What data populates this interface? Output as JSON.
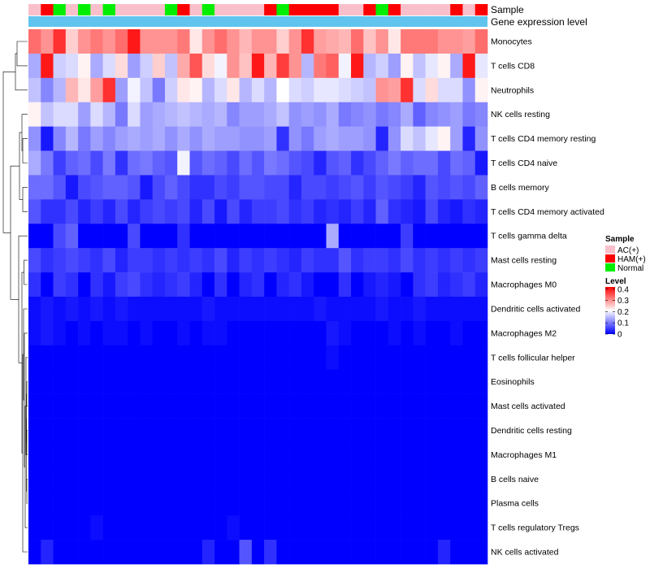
{
  "chart_data": {
    "type": "heatmap",
    "annotation_labels": {
      "sample": "Sample",
      "expression": "Gene expression level"
    },
    "sample_legend": {
      "title": "Sample",
      "entries": [
        {
          "label": "AC(+)",
          "color": "#F9C0CB"
        },
        {
          "label": "HAM(+)",
          "color": "#FF0000"
        },
        {
          "label": "Normal",
          "color": "#00EE00"
        }
      ]
    },
    "level_legend": {
      "title": "Level",
      "ticks": [
        "0.4",
        "0.3",
        "0.2",
        "0.1",
        "0"
      ],
      "tick_values": [
        0.4,
        0.3,
        0.2,
        0.1,
        0
      ],
      "range": [
        0,
        0.42
      ],
      "colors": [
        "#0000FF",
        "#FFFFFF",
        "#FF0000"
      ],
      "mid": 0.21
    },
    "samples": [
      "AC(+)",
      "HAM(+)",
      "Normal",
      "AC(+)",
      "Normal",
      "AC(+)",
      "Normal",
      "AC(+)",
      "AC(+)",
      "AC(+)",
      "AC(+)",
      "Normal",
      "HAM(+)",
      "AC(+)",
      "Normal",
      "AC(+)",
      "AC(+)",
      "AC(+)",
      "AC(+)",
      "HAM(+)",
      "Normal",
      "HAM(+)",
      "HAM(+)",
      "HAM(+)",
      "HAM(+)",
      "AC(+)",
      "AC(+)",
      "HAM(+)",
      "Normal",
      "HAM(+)",
      "AC(+)",
      "AC(+)",
      "AC(+)",
      "AC(+)",
      "HAM(+)",
      "AC(+)",
      "HAM(+)"
    ],
    "rows": [
      "Monocytes",
      "T cells CD8",
      "Neutrophils",
      "NK cells resting",
      "T cells CD4 memory resting",
      "T cells CD4 naive",
      "B cells memory",
      "T cells CD4 memory activated",
      "T cells gamma delta",
      "Mast cells resting",
      "Macrophages M0",
      "Dendritic cells activated",
      "Macrophages M2",
      "T cells follicular helper",
      "Eosinophils",
      "Mast cells activated",
      "Dendritic cells resting",
      "Macrophages M1",
      "B cells naive",
      "Plasma cells",
      "T cells regulatory  Tregs",
      "NK cells activated"
    ],
    "values": [
      [
        0.33,
        0.3,
        0.38,
        0.25,
        0.3,
        0.32,
        0.3,
        0.33,
        0.4,
        0.3,
        0.3,
        0.3,
        0.32,
        0.23,
        0.3,
        0.33,
        0.3,
        0.27,
        0.3,
        0.3,
        0.25,
        0.3,
        0.38,
        0.29,
        0.28,
        0.27,
        0.33,
        0.26,
        0.3,
        0.23,
        0.32,
        0.32,
        0.32,
        0.3,
        0.3,
        0.29,
        0.33
      ],
      [
        0.14,
        0.4,
        0.17,
        0.18,
        0.22,
        0.14,
        0.18,
        0.24,
        0.13,
        0.17,
        0.25,
        0.16,
        0.28,
        0.35,
        0.24,
        0.2,
        0.3,
        0.26,
        0.4,
        0.27,
        0.37,
        0.3,
        0.15,
        0.32,
        0.34,
        0.2,
        0.4,
        0.15,
        0.17,
        0.13,
        0.22,
        0.16,
        0.19,
        0.22,
        0.14,
        0.4,
        0.19
      ],
      [
        0.16,
        0.11,
        0.15,
        0.27,
        0.23,
        0.29,
        0.38,
        0.13,
        0.2,
        0.16,
        0.1,
        0.17,
        0.23,
        0.22,
        0.15,
        0.18,
        0.23,
        0.15,
        0.18,
        0.15,
        0.21,
        0.18,
        0.17,
        0.19,
        0.19,
        0.18,
        0.17,
        0.16,
        0.3,
        0.29,
        0.38,
        0.18,
        0.24,
        0.18,
        0.18,
        0.12,
        0.22
      ],
      [
        0.22,
        0.16,
        0.18,
        0.18,
        0.13,
        0.18,
        0.15,
        0.1,
        0.18,
        0.13,
        0.14,
        0.15,
        0.16,
        0.15,
        0.14,
        0.15,
        0.11,
        0.13,
        0.13,
        0.14,
        0.16,
        0.12,
        0.13,
        0.12,
        0.14,
        0.1,
        0.11,
        0.12,
        0.1,
        0.11,
        0.14,
        0.08,
        0.11,
        0.12,
        0.13,
        0.1,
        0.11
      ],
      [
        0.12,
        0.02,
        0.11,
        0.15,
        0.1,
        0.13,
        0.11,
        0.13,
        0.14,
        0.13,
        0.14,
        0.12,
        0.14,
        0.12,
        0.14,
        0.13,
        0.13,
        0.12,
        0.12,
        0.13,
        0.04,
        0.12,
        0.1,
        0.13,
        0.14,
        0.13,
        0.13,
        0.12,
        0.03,
        0.12,
        0.18,
        0.16,
        0.19,
        0.22,
        0.13,
        0.03,
        0.12
      ],
      [
        0.14,
        0.1,
        0.05,
        0.08,
        0.09,
        0.06,
        0.1,
        0.04,
        0.09,
        0.1,
        0.08,
        0.07,
        0.2,
        0.07,
        0.09,
        0.08,
        0.06,
        0.09,
        0.07,
        0.1,
        0.09,
        0.07,
        0.06,
        0.03,
        0.07,
        0.08,
        0.04,
        0.06,
        0.08,
        0.1,
        0.08,
        0.09,
        0.09,
        0.06,
        0.09,
        0.08,
        0.02
      ],
      [
        0.09,
        0.09,
        0.07,
        0.02,
        0.06,
        0.07,
        0.08,
        0.08,
        0.07,
        0.02,
        0.06,
        0.08,
        0.06,
        0.04,
        0.04,
        0.06,
        0.05,
        0.07,
        0.07,
        0.06,
        0.06,
        0.03,
        0.06,
        0.06,
        0.05,
        0.06,
        0.07,
        0.05,
        0.07,
        0.06,
        0.05,
        0.03,
        0.07,
        0.06,
        0.07,
        0.06,
        0.08
      ],
      [
        0.07,
        0.04,
        0.04,
        0.06,
        0.03,
        0.05,
        0.03,
        0.06,
        0.03,
        0.05,
        0.06,
        0.05,
        0.06,
        0.03,
        0.06,
        0.02,
        0.06,
        0.03,
        0.05,
        0.05,
        0.06,
        0.04,
        0.05,
        0.03,
        0.04,
        0.03,
        0.05,
        0.03,
        0.08,
        0.04,
        0.03,
        0.02,
        0.06,
        0.03,
        0.02,
        0.04,
        0.03
      ],
      [
        0.0,
        0.0,
        0.06,
        0.08,
        0.0,
        0.0,
        0.0,
        0.0,
        0.06,
        0.0,
        0.0,
        0.0,
        0.04,
        0.0,
        0.0,
        0.0,
        0.0,
        0.0,
        0.0,
        0.0,
        0.0,
        0.0,
        0.0,
        0.0,
        0.14,
        0.0,
        0.0,
        0.0,
        0.0,
        0.0,
        0.05,
        0.0,
        0.0,
        0.0,
        0.0,
        0.0,
        0.0
      ],
      [
        0.06,
        0.04,
        0.05,
        0.06,
        0.05,
        0.04,
        0.06,
        0.03,
        0.05,
        0.05,
        0.04,
        0.05,
        0.04,
        0.05,
        0.04,
        0.06,
        0.03,
        0.05,
        0.04,
        0.05,
        0.04,
        0.03,
        0.05,
        0.04,
        0.04,
        0.07,
        0.04,
        0.05,
        0.05,
        0.04,
        0.06,
        0.04,
        0.05,
        0.04,
        0.05,
        0.04,
        0.05
      ],
      [
        0.04,
        0.0,
        0.05,
        0.04,
        0.0,
        0.04,
        0.02,
        0.05,
        0.06,
        0.04,
        0.03,
        0.04,
        0.05,
        0.03,
        0.0,
        0.04,
        0.0,
        0.03,
        0.04,
        0.0,
        0.03,
        0.04,
        0.02,
        0.0,
        0.0,
        0.04,
        0.0,
        0.02,
        0.03,
        0.02,
        0.0,
        0.04,
        0.05,
        0.03,
        0.04,
        0.05,
        0.03
      ],
      [
        0.01,
        0.02,
        0.01,
        0.02,
        0.01,
        0.02,
        0.01,
        0.02,
        0.01,
        0.01,
        0.01,
        0.01,
        0.01,
        0.01,
        0.02,
        0.01,
        0.01,
        0.01,
        0.01,
        0.01,
        0.01,
        0.01,
        0.01,
        0.02,
        0.01,
        0.01,
        0.01,
        0.01,
        0.02,
        0.01,
        0.01,
        0.02,
        0.01,
        0.01,
        0.01,
        0.01,
        0.01
      ],
      [
        0.01,
        0.02,
        0.01,
        0.0,
        0.01,
        0.0,
        0.01,
        0.01,
        0.0,
        0.01,
        0.0,
        0.0,
        0.01,
        0.0,
        0.01,
        0.01,
        0.0,
        0.0,
        0.0,
        0.0,
        0.0,
        0.0,
        0.0,
        0.0,
        0.02,
        0.01,
        0.0,
        0.0,
        0.0,
        0.01,
        0.0,
        0.01,
        0.0,
        0.0,
        0.01,
        0.0,
        0.0
      ],
      [
        0.0,
        0.0,
        0.0,
        0.0,
        0.0,
        0.0,
        0.0,
        0.0,
        0.0,
        0.0,
        0.0,
        0.0,
        0.0,
        0.0,
        0.0,
        0.0,
        0.0,
        0.0,
        0.0,
        0.0,
        0.0,
        0.0,
        0.0,
        0.0,
        0.01,
        0.0,
        0.0,
        0.0,
        0.0,
        0.0,
        0.0,
        0.0,
        0.0,
        0.0,
        0.0,
        0.0,
        0.0
      ],
      [
        0,
        0,
        0,
        0,
        0,
        0,
        0,
        0,
        0,
        0,
        0,
        0,
        0,
        0,
        0,
        0,
        0,
        0,
        0,
        0,
        0,
        0,
        0,
        0,
        0,
        0,
        0,
        0,
        0,
        0,
        0,
        0,
        0,
        0,
        0,
        0,
        0
      ],
      [
        0,
        0,
        0,
        0,
        0,
        0,
        0,
        0,
        0,
        0,
        0,
        0,
        0,
        0,
        0,
        0,
        0,
        0,
        0,
        0,
        0,
        0,
        0,
        0,
        0,
        0,
        0,
        0,
        0,
        0,
        0,
        0,
        0,
        0,
        0,
        0,
        0
      ],
      [
        0,
        0,
        0,
        0,
        0,
        0,
        0,
        0,
        0,
        0,
        0,
        0,
        0,
        0,
        0,
        0,
        0,
        0,
        0,
        0,
        0,
        0,
        0,
        0,
        0,
        0,
        0,
        0,
        0,
        0,
        0,
        0,
        0,
        0,
        0,
        0,
        0
      ],
      [
        0,
        0,
        0,
        0,
        0,
        0,
        0,
        0,
        0,
        0,
        0,
        0,
        0,
        0,
        0,
        0,
        0,
        0,
        0,
        0,
        0,
        0,
        0,
        0,
        0,
        0,
        0,
        0,
        0,
        0,
        0,
        0,
        0,
        0,
        0,
        0,
        0
      ],
      [
        0,
        0,
        0,
        0,
        0,
        0,
        0,
        0,
        0,
        0,
        0,
        0,
        0,
        0,
        0,
        0,
        0,
        0,
        0,
        0,
        0,
        0,
        0,
        0,
        0,
        0,
        0,
        0,
        0,
        0,
        0,
        0,
        0,
        0,
        0,
        0,
        0
      ],
      [
        0,
        0,
        0,
        0,
        0,
        0,
        0,
        0,
        0,
        0,
        0,
        0,
        0,
        0,
        0,
        0,
        0,
        0,
        0,
        0,
        0,
        0,
        0,
        0,
        0,
        0,
        0,
        0,
        0,
        0,
        0,
        0,
        0,
        0,
        0,
        0,
        0
      ],
      [
        0.0,
        0.0,
        0.0,
        0.0,
        0.0,
        0.01,
        0.0,
        0.0,
        0.0,
        0.0,
        0.0,
        0.0,
        0.0,
        0.0,
        0.0,
        0.0,
        0.01,
        0.0,
        0.0,
        0.0,
        0.0,
        0.0,
        0.0,
        0.0,
        0.0,
        0.0,
        0.0,
        0.0,
        0.0,
        0.0,
        0.0,
        0.0,
        0.0,
        0.0,
        0.0,
        0.0,
        0.0
      ],
      [
        0.0,
        0.03,
        0.0,
        0.0,
        0.0,
        0.0,
        0.0,
        0.0,
        0.0,
        0.0,
        0.0,
        0.0,
        0.0,
        0.0,
        0.03,
        0.0,
        0.0,
        0.07,
        0.0,
        0.04,
        0.0,
        0.0,
        0.0,
        0.0,
        0.0,
        0.0,
        0.0,
        0.0,
        0.0,
        0.0,
        0.0,
        0.0,
        0.0,
        0.03,
        0.0,
        0.0,
        0.0
      ]
    ]
  }
}
